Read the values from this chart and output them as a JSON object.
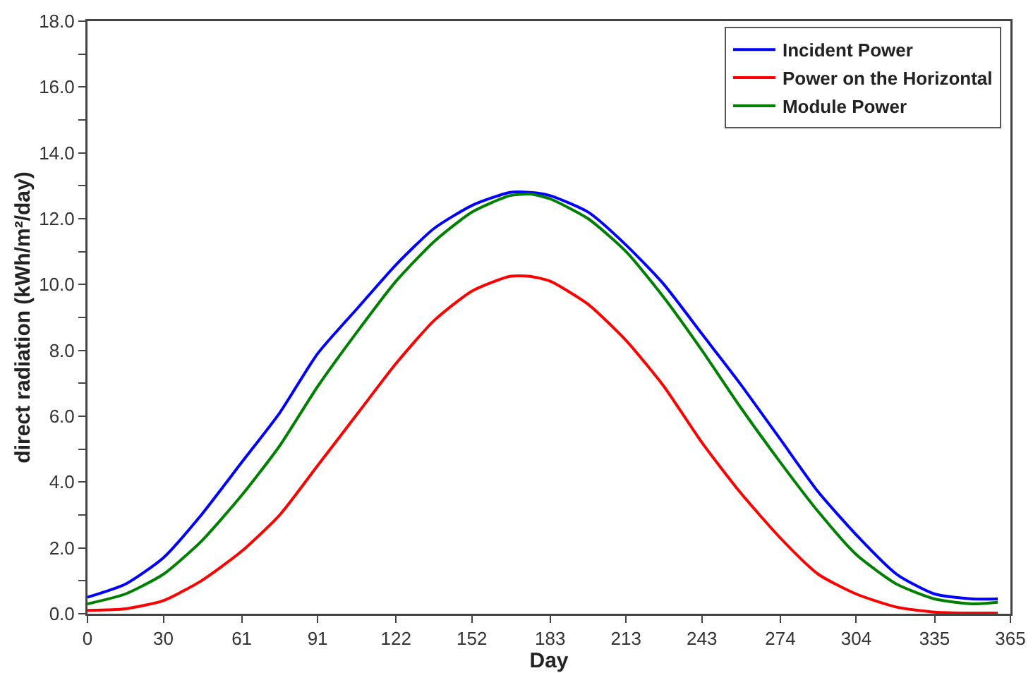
{
  "chart_data": {
    "type": "line",
    "xlabel": "Day",
    "ylabel": "direct radiation (kWh/m²/day)",
    "x": [
      0,
      15,
      30,
      45,
      61,
      76,
      91,
      107,
      122,
      137,
      152,
      167,
      175,
      183,
      198,
      213,
      228,
      243,
      258,
      274,
      289,
      304,
      320,
      335,
      350,
      360
    ],
    "series": [
      {
        "name": "Incident Power",
        "color": "#0000ff",
        "values": [
          0.5,
          0.9,
          1.7,
          3.0,
          4.6,
          6.1,
          7.9,
          9.3,
          10.6,
          11.7,
          12.4,
          12.8,
          12.8,
          12.7,
          12.2,
          11.2,
          10.0,
          8.5,
          7.0,
          5.3,
          3.7,
          2.4,
          1.2,
          0.6,
          0.45,
          0.45
        ]
      },
      {
        "name": "Power on the Horizontal",
        "color": "#ff0000",
        "values": [
          0.1,
          0.15,
          0.4,
          1.0,
          1.9,
          3.0,
          4.5,
          6.1,
          7.6,
          8.9,
          9.8,
          10.25,
          10.25,
          10.1,
          9.4,
          8.3,
          6.9,
          5.2,
          3.7,
          2.3,
          1.2,
          0.6,
          0.2,
          0.05,
          0.02,
          0.02
        ]
      },
      {
        "name": "Module Power",
        "color": "#008000",
        "values": [
          0.3,
          0.6,
          1.2,
          2.2,
          3.6,
          5.1,
          6.9,
          8.6,
          10.1,
          11.3,
          12.2,
          12.7,
          12.75,
          12.6,
          12.0,
          11.0,
          9.6,
          8.0,
          6.3,
          4.6,
          3.1,
          1.8,
          0.9,
          0.45,
          0.3,
          0.35
        ]
      }
    ],
    "xlim": [
      0,
      365
    ],
    "xticks": [
      0,
      30,
      61,
      91,
      122,
      152,
      183,
      213,
      243,
      274,
      304,
      335,
      365
    ],
    "ylim": [
      0,
      18
    ],
    "yticks": [
      {
        "value": 0,
        "label": "0.0"
      },
      {
        "value": 1,
        "label": null
      },
      {
        "value": 2,
        "label": "2.0"
      },
      {
        "value": 3,
        "label": null
      },
      {
        "value": 4,
        "label": "4.0"
      },
      {
        "value": 5,
        "label": null
      },
      {
        "value": 6,
        "label": "6.0"
      },
      {
        "value": 7,
        "label": null
      },
      {
        "value": 8,
        "label": "8.0"
      },
      {
        "value": 9,
        "label": null
      },
      {
        "value": 10,
        "label": "10.0"
      },
      {
        "value": 11,
        "label": null
      },
      {
        "value": 12,
        "label": "12.0"
      },
      {
        "value": 13,
        "label": null
      },
      {
        "value": 14,
        "label": "14.0"
      },
      {
        "value": 15,
        "label": null
      },
      {
        "value": 16,
        "label": "16.0"
      },
      {
        "value": 17,
        "label": null
      },
      {
        "value": 18,
        "label": "18.0"
      }
    ],
    "grid": false,
    "legend": "top right",
    "marker": "none",
    "line_style": "solid"
  }
}
